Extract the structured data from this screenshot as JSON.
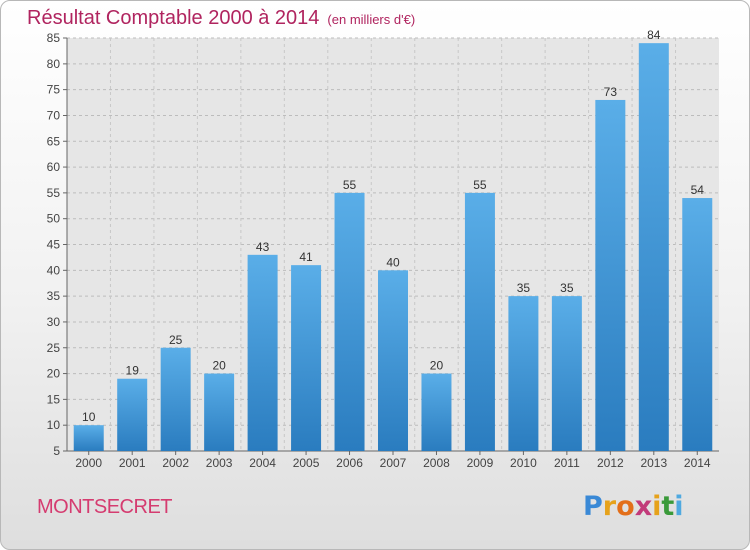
{
  "chart_data": {
    "type": "bar",
    "title": "Résultat Comptable 2000 à 2014",
    "subtitle": "(en milliers d'€)",
    "categories": [
      "2000",
      "2001",
      "2002",
      "2003",
      "2004",
      "2005",
      "2006",
      "2007",
      "2008",
      "2009",
      "2010",
      "2011",
      "2012",
      "2013",
      "2014"
    ],
    "values": [
      10,
      19,
      25,
      20,
      43,
      41,
      55,
      40,
      20,
      55,
      35,
      35,
      73,
      84,
      54
    ],
    "ylim": [
      5,
      85
    ],
    "yticks": [
      5,
      10,
      15,
      20,
      25,
      30,
      35,
      40,
      45,
      50,
      55,
      60,
      65,
      70,
      75,
      80,
      85
    ],
    "grid": true,
    "xlabel": "",
    "ylabel": "",
    "bar_color_top": "#5aaee8",
    "bar_color_bottom": "#2a7cbf"
  },
  "footer": {
    "town": "MONTSECRET",
    "logo_letters": [
      "P",
      "r",
      "o",
      "x",
      "i",
      "t",
      "i"
    ],
    "logo_colors": [
      "#3a89d6",
      "#e6a21b",
      "#e36f1a",
      "#c23a7a",
      "#e6a21b",
      "#3a9a3a",
      "#4fa9e0"
    ]
  }
}
